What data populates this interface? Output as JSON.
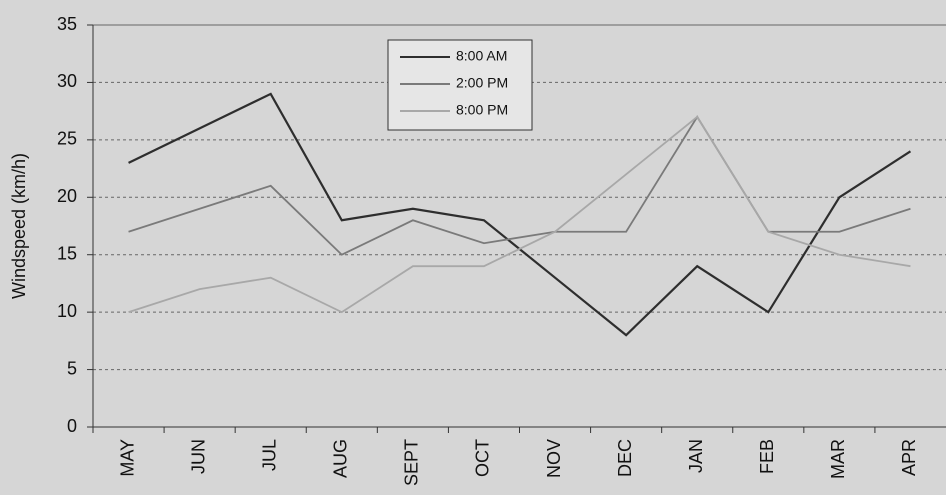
{
  "chart_data": {
    "type": "line",
    "y_label": "Windspeed (km/h)",
    "categories": [
      "MAY",
      "JUN",
      "JUL",
      "AUG",
      "SEPT",
      "OCT",
      "NOV",
      "DEC",
      "JAN",
      "FEB",
      "MAR",
      "APR"
    ],
    "series": [
      {
        "name": "8:00 AM",
        "color": "#2e2e2e",
        "values": [
          23,
          26,
          29,
          18,
          19,
          18,
          13,
          8,
          14,
          10,
          20,
          24
        ]
      },
      {
        "name": "2:00 PM",
        "color": "#7a7a7a",
        "values": [
          17,
          19,
          21,
          15,
          18,
          16,
          17,
          17,
          27,
          17,
          17,
          19
        ]
      },
      {
        "name": "8:00 PM",
        "color": "#a8a8a8",
        "values": [
          10,
          12,
          13,
          10,
          14,
          14,
          17,
          22,
          27,
          17,
          15,
          14
        ]
      }
    ],
    "ylim": [
      0,
      35
    ],
    "yticks": [
      0,
      5,
      10,
      15,
      20,
      25,
      30,
      35
    ],
    "grid": true
  }
}
